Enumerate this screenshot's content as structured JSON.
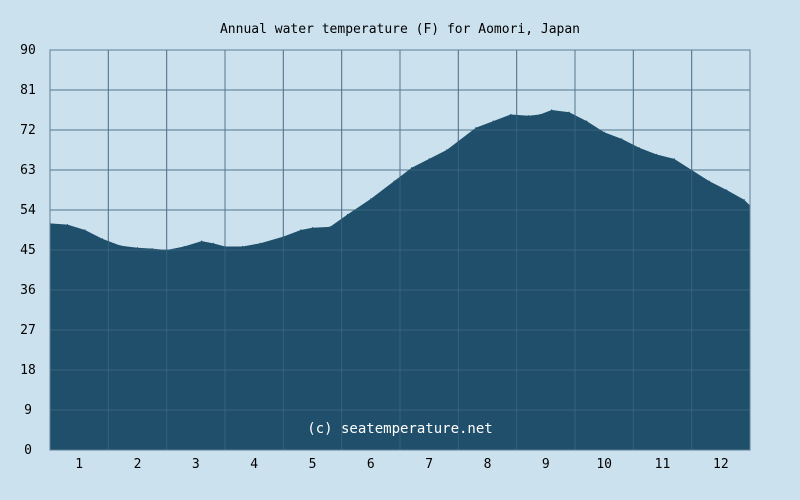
{
  "chart_data": {
    "type": "area",
    "title": "Annual water temperature (F) for Aomori, Japan",
    "xlabel": "",
    "ylabel": "",
    "ylim": [
      0,
      90
    ],
    "y_ticks": [
      "0",
      "9",
      "18",
      "27",
      "36",
      "45",
      "54",
      "63",
      "72",
      "81",
      "90"
    ],
    "x_tick_labels": [
      "1",
      "2",
      "3",
      "4",
      "5",
      "6",
      "7",
      "8",
      "9",
      "10",
      "11",
      "12"
    ],
    "grid": true,
    "watermark": "(c) seatemperature.net",
    "colors": {
      "background": "#cbe1ee",
      "area": "#1f4f6a",
      "grid": "#5d7f97"
    },
    "series": [
      {
        "x": [
          0.0,
          0.3,
          0.6,
          0.9,
          1.2,
          1.5,
          1.75,
          2.0,
          2.3,
          2.6,
          2.8,
          3.0,
          3.3,
          3.6,
          4.0,
          4.3,
          4.5,
          4.8,
          5.1,
          5.5,
          5.9,
          6.2,
          6.5,
          6.8,
          7.0,
          7.3,
          7.6,
          7.9,
          8.2,
          8.4,
          8.6,
          8.9,
          9.2,
          9.5,
          9.8,
          10.1,
          10.4,
          10.7,
          11.0,
          11.3,
          11.6,
          11.9,
          12.0
        ],
        "values": [
          51,
          50.7,
          49.5,
          47.5,
          46,
          45.5,
          45.3,
          45,
          45.8,
          47,
          46.5,
          45.8,
          45.8,
          46.5,
          48,
          49.5,
          50,
          50.2,
          53,
          56.5,
          60.5,
          63.5,
          65.5,
          67.5,
          69.5,
          72.5,
          74,
          75.5,
          75.2,
          75.5,
          76.5,
          76,
          74,
          71.5,
          70,
          68,
          66.5,
          65.5,
          63,
          60.5,
          58.5,
          56.3,
          55
        ]
      }
    ]
  }
}
